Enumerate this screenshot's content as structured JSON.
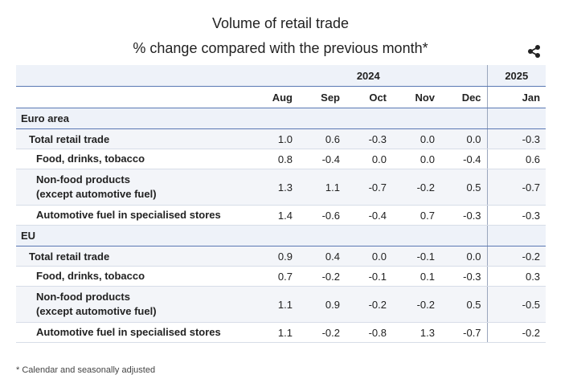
{
  "header": {
    "title": "Volume of retail trade",
    "subtitle": "% change compared with the previous month*"
  },
  "chart_data": {
    "type": "table",
    "year_headers": [
      "2024",
      "2025"
    ],
    "columns": [
      "Aug",
      "Sep",
      "Oct",
      "Nov",
      "Dec",
      "Jan"
    ],
    "groups": [
      {
        "name": "Euro area",
        "rows": [
          {
            "label": [
              "Total retail trade"
            ],
            "values": [
              "1.0",
              "0.6",
              "-0.3",
              "0.0",
              "0.0",
              "-0.3"
            ]
          },
          {
            "label": [
              "Food, drinks, tobacco"
            ],
            "values": [
              "0.8",
              "-0.4",
              "0.0",
              "0.0",
              "-0.4",
              "0.6"
            ]
          },
          {
            "label": [
              "Non-food products",
              "(except automotive fuel)"
            ],
            "values": [
              "1.3",
              "1.1",
              "-0.7",
              "-0.2",
              "0.5",
              "-0.7"
            ]
          },
          {
            "label": [
              "Automotive fuel in specialised stores"
            ],
            "values": [
              "1.4",
              "-0.6",
              "-0.4",
              "0.7",
              "-0.3",
              "-0.3"
            ]
          }
        ]
      },
      {
        "name": "EU",
        "rows": [
          {
            "label": [
              "Total retail trade"
            ],
            "values": [
              "0.9",
              "0.4",
              "0.0",
              "-0.1",
              "0.0",
              "-0.2"
            ]
          },
          {
            "label": [
              "Food, drinks, tobacco"
            ],
            "values": [
              "0.7",
              "-0.2",
              "-0.1",
              "0.1",
              "-0.3",
              "0.3"
            ]
          },
          {
            "label": [
              "Non-food products",
              "(except automotive fuel)"
            ],
            "values": [
              "1.1",
              "0.9",
              "-0.2",
              "-0.2",
              "0.5",
              "-0.5"
            ]
          },
          {
            "label": [
              "Automotive fuel in specialised stores"
            ],
            "values": [
              "1.1",
              "-0.2",
              "-0.8",
              "1.3",
              "-0.7",
              "-0.2"
            ]
          }
        ]
      }
    ]
  },
  "footnote": "* Calendar and seasonally adjusted",
  "icons": {
    "share": "share-icon"
  },
  "colors": {
    "header_bg": "#eef2f9",
    "rule": "#5a78b4",
    "row_shade": "#f3f5f9"
  }
}
